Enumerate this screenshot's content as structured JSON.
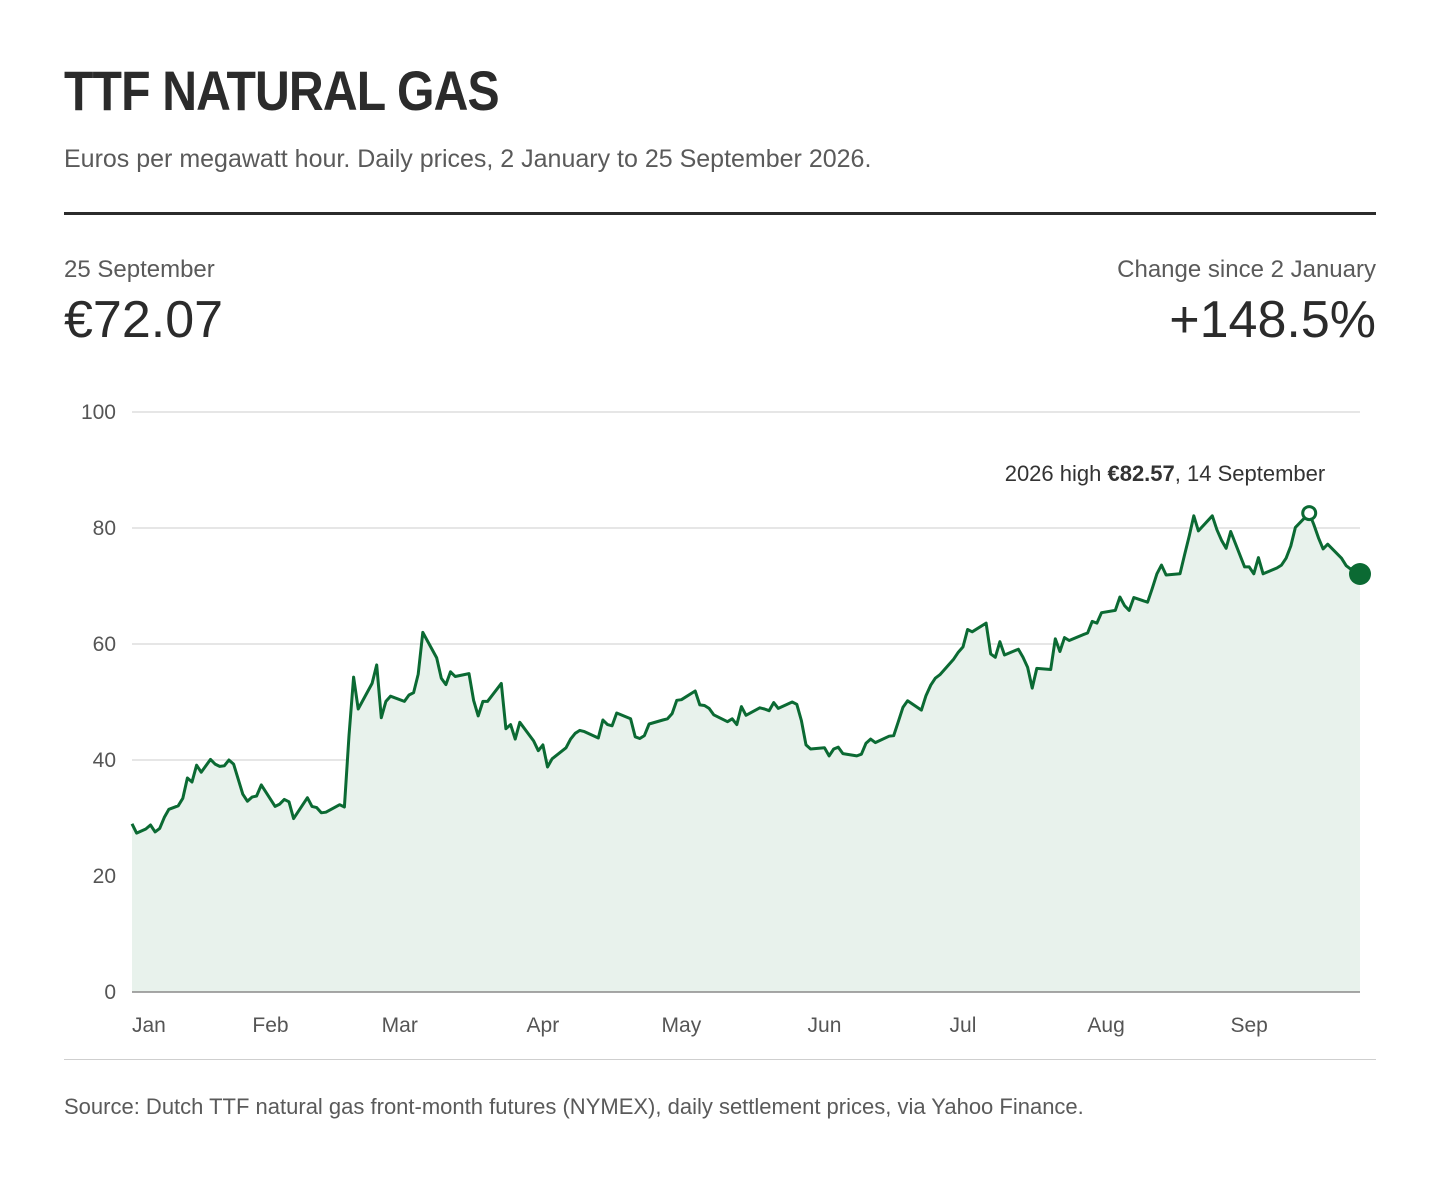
{
  "header": {
    "title": "TTF NATURAL GAS",
    "subtitle": "Euros per megawatt hour. Daily prices, 2 January to 25 September 2026."
  },
  "stats": {
    "latest_label": "25 September",
    "latest_value": "€72.07",
    "change_label": "Change since 2 January",
    "change_value": "+148.5%"
  },
  "annotation": {
    "prefix": "2026 high ",
    "value": "€82.57",
    "suffix": ", 14 September"
  },
  "source": "Source: Dutch TTF natural gas front-month futures (NYMEX), daily settlement prices, via Yahoo Finance.",
  "colors": {
    "line": "#0b6a33",
    "area": "#e8f2ec",
    "grid": "#d6d6d6",
    "axis": "#8a8a8a"
  },
  "chart_data": {
    "type": "area",
    "title": "TTF NATURAL GAS",
    "ylim": [
      0,
      100
    ],
    "yticks": [
      0,
      20,
      40,
      60,
      80,
      100
    ],
    "xlim": [
      "2026-01-02",
      "2026-09-25"
    ],
    "xticks": [
      {
        "date": "2026-01-02",
        "label": "Jan"
      },
      {
        "date": "2026-02-01",
        "label": "Feb"
      },
      {
        "date": "2026-03-01",
        "label": "Mar"
      },
      {
        "date": "2026-04-01",
        "label": "Apr"
      },
      {
        "date": "2026-05-01",
        "label": "May"
      },
      {
        "date": "2026-06-01",
        "label": "Jun"
      },
      {
        "date": "2026-07-01",
        "label": "Jul"
      },
      {
        "date": "2026-08-01",
        "label": "Aug"
      },
      {
        "date": "2026-09-01",
        "label": "Sep"
      }
    ],
    "grid": true,
    "highlight": {
      "date": "2026-09-14",
      "value": 82.57
    },
    "last": {
      "date": "2026-09-25",
      "value": 72.07
    },
    "series": [
      {
        "points": [
          [
            "2026-01-02",
            29.0
          ],
          [
            "2026-01-03",
            27.4
          ],
          [
            "2026-01-05",
            28.1
          ],
          [
            "2026-01-06",
            28.8
          ],
          [
            "2026-01-07",
            27.6
          ],
          [
            "2026-01-08",
            28.2
          ],
          [
            "2026-01-09",
            30.1
          ],
          [
            "2026-01-10",
            31.5
          ],
          [
            "2026-01-12",
            32.1
          ],
          [
            "2026-01-13",
            33.4
          ],
          [
            "2026-01-14",
            36.9
          ],
          [
            "2026-01-15",
            36.2
          ],
          [
            "2026-01-16",
            39.1
          ],
          [
            "2026-01-17",
            37.9
          ],
          [
            "2026-01-19",
            40.1
          ],
          [
            "2026-01-20",
            39.3
          ],
          [
            "2026-01-21",
            38.9
          ],
          [
            "2026-01-22",
            39.0
          ],
          [
            "2026-01-23",
            40.0
          ],
          [
            "2026-01-24",
            39.3
          ],
          [
            "2026-01-26",
            34.1
          ],
          [
            "2026-01-27",
            32.9
          ],
          [
            "2026-01-28",
            33.6
          ],
          [
            "2026-01-29",
            33.8
          ],
          [
            "2026-01-30",
            35.7
          ],
          [
            "2026-02-02",
            32.0
          ],
          [
            "2026-02-03",
            32.4
          ],
          [
            "2026-02-04",
            33.2
          ],
          [
            "2026-02-05",
            32.8
          ],
          [
            "2026-02-06",
            29.9
          ],
          [
            "2026-02-09",
            33.5
          ],
          [
            "2026-02-10",
            32.0
          ],
          [
            "2026-02-11",
            31.8
          ],
          [
            "2026-02-12",
            30.9
          ],
          [
            "2026-02-13",
            31.0
          ],
          [
            "2026-02-16",
            32.3
          ],
          [
            "2026-02-17",
            31.9
          ],
          [
            "2026-02-18",
            44.2
          ],
          [
            "2026-02-19",
            54.3
          ],
          [
            "2026-02-20",
            48.8
          ],
          [
            "2026-02-23",
            53.2
          ],
          [
            "2026-02-24",
            56.4
          ],
          [
            "2026-02-25",
            47.3
          ],
          [
            "2026-02-26",
            50.1
          ],
          [
            "2026-02-27",
            51.0
          ],
          [
            "2026-03-02",
            50.1
          ],
          [
            "2026-03-03",
            51.2
          ],
          [
            "2026-03-04",
            51.6
          ],
          [
            "2026-03-05",
            54.8
          ],
          [
            "2026-03-06",
            62.0
          ],
          [
            "2026-03-09",
            57.6
          ],
          [
            "2026-03-10",
            54.1
          ],
          [
            "2026-03-11",
            53.0
          ],
          [
            "2026-03-12",
            55.2
          ],
          [
            "2026-03-13",
            54.4
          ],
          [
            "2026-03-16",
            54.9
          ],
          [
            "2026-03-17",
            50.3
          ],
          [
            "2026-03-18",
            47.6
          ],
          [
            "2026-03-19",
            50.1
          ],
          [
            "2026-03-20",
            50.1
          ],
          [
            "2026-03-23",
            53.2
          ],
          [
            "2026-03-24",
            45.4
          ],
          [
            "2026-03-25",
            46.1
          ],
          [
            "2026-03-26",
            43.6
          ],
          [
            "2026-03-27",
            46.5
          ],
          [
            "2026-03-30",
            43.3
          ],
          [
            "2026-03-31",
            41.6
          ],
          [
            "2026-04-01",
            42.6
          ],
          [
            "2026-04-02",
            38.8
          ],
          [
            "2026-04-03",
            40.2
          ],
          [
            "2026-04-06",
            42.1
          ],
          [
            "2026-04-07",
            43.6
          ],
          [
            "2026-04-08",
            44.6
          ],
          [
            "2026-04-09",
            45.1
          ],
          [
            "2026-04-10",
            44.9
          ],
          [
            "2026-04-13",
            43.8
          ],
          [
            "2026-04-14",
            46.9
          ],
          [
            "2026-04-15",
            46.1
          ],
          [
            "2026-04-16",
            45.9
          ],
          [
            "2026-04-17",
            48.1
          ],
          [
            "2026-04-20",
            47.1
          ],
          [
            "2026-04-21",
            44.0
          ],
          [
            "2026-04-22",
            43.7
          ],
          [
            "2026-04-23",
            44.2
          ],
          [
            "2026-04-24",
            46.2
          ],
          [
            "2026-04-27",
            46.9
          ],
          [
            "2026-04-28",
            47.1
          ],
          [
            "2026-04-29",
            48.0
          ],
          [
            "2026-04-30",
            50.3
          ],
          [
            "2026-05-01",
            50.4
          ],
          [
            "2026-05-04",
            51.9
          ],
          [
            "2026-05-05",
            49.5
          ],
          [
            "2026-05-06",
            49.4
          ],
          [
            "2026-05-07",
            48.9
          ],
          [
            "2026-05-08",
            47.8
          ],
          [
            "2026-05-11",
            46.6
          ],
          [
            "2026-05-12",
            47.1
          ],
          [
            "2026-05-13",
            46.1
          ],
          [
            "2026-05-14",
            49.2
          ],
          [
            "2026-05-15",
            47.7
          ],
          [
            "2026-05-18",
            49.0
          ],
          [
            "2026-05-19",
            48.8
          ],
          [
            "2026-05-20",
            48.5
          ],
          [
            "2026-05-21",
            49.9
          ],
          [
            "2026-05-22",
            48.9
          ],
          [
            "2026-05-25",
            50.0
          ],
          [
            "2026-05-26",
            49.6
          ],
          [
            "2026-05-27",
            46.8
          ],
          [
            "2026-05-28",
            42.6
          ],
          [
            "2026-05-29",
            41.9
          ],
          [
            "2026-06-01",
            42.1
          ],
          [
            "2026-06-02",
            40.7
          ],
          [
            "2026-06-03",
            41.9
          ],
          [
            "2026-06-04",
            42.2
          ],
          [
            "2026-06-05",
            41.1
          ],
          [
            "2026-06-08",
            40.7
          ],
          [
            "2026-06-09",
            41.0
          ],
          [
            "2026-06-10",
            42.9
          ],
          [
            "2026-06-11",
            43.6
          ],
          [
            "2026-06-12",
            43.0
          ],
          [
            "2026-06-15",
            44.1
          ],
          [
            "2026-06-16",
            44.2
          ],
          [
            "2026-06-17",
            46.6
          ],
          [
            "2026-06-18",
            49.1
          ],
          [
            "2026-06-19",
            50.2
          ],
          [
            "2026-06-22",
            48.6
          ],
          [
            "2026-06-23",
            51.1
          ],
          [
            "2026-06-24",
            52.9
          ],
          [
            "2026-06-25",
            54.1
          ],
          [
            "2026-06-26",
            54.7
          ],
          [
            "2026-06-29",
            57.4
          ],
          [
            "2026-06-30",
            58.6
          ],
          [
            "2026-07-01",
            59.5
          ],
          [
            "2026-07-02",
            62.5
          ],
          [
            "2026-07-03",
            62.1
          ],
          [
            "2026-07-06",
            63.6
          ],
          [
            "2026-07-07",
            58.3
          ],
          [
            "2026-07-08",
            57.7
          ],
          [
            "2026-07-09",
            60.4
          ],
          [
            "2026-07-10",
            58.1
          ],
          [
            "2026-07-13",
            59.1
          ],
          [
            "2026-07-14",
            57.7
          ],
          [
            "2026-07-15",
            56.0
          ],
          [
            "2026-07-16",
            52.4
          ],
          [
            "2026-07-17",
            55.8
          ],
          [
            "2026-07-20",
            55.6
          ],
          [
            "2026-07-21",
            60.9
          ],
          [
            "2026-07-22",
            58.7
          ],
          [
            "2026-07-23",
            61.1
          ],
          [
            "2026-07-24",
            60.6
          ],
          [
            "2026-07-27",
            61.6
          ],
          [
            "2026-07-28",
            61.9
          ],
          [
            "2026-07-29",
            63.9
          ],
          [
            "2026-07-30",
            63.6
          ],
          [
            "2026-07-31",
            65.4
          ],
          [
            "2026-08-03",
            65.8
          ],
          [
            "2026-08-04",
            68.1
          ],
          [
            "2026-08-05",
            66.6
          ],
          [
            "2026-08-06",
            65.8
          ],
          [
            "2026-08-07",
            68.0
          ],
          [
            "2026-08-10",
            67.2
          ],
          [
            "2026-08-11",
            69.6
          ],
          [
            "2026-08-12",
            72.1
          ],
          [
            "2026-08-13",
            73.6
          ],
          [
            "2026-08-14",
            71.9
          ],
          [
            "2026-08-17",
            72.1
          ],
          [
            "2026-08-18",
            75.4
          ],
          [
            "2026-08-19",
            78.6
          ],
          [
            "2026-08-20",
            82.1
          ],
          [
            "2026-08-21",
            79.5
          ],
          [
            "2026-08-24",
            82.1
          ],
          [
            "2026-08-25",
            79.7
          ],
          [
            "2026-08-26",
            77.9
          ],
          [
            "2026-08-27",
            76.5
          ],
          [
            "2026-08-28",
            79.4
          ],
          [
            "2026-08-31",
            73.3
          ],
          [
            "2026-09-01",
            73.3
          ],
          [
            "2026-09-02",
            72.1
          ],
          [
            "2026-09-03",
            74.9
          ],
          [
            "2026-09-04",
            72.1
          ],
          [
            "2026-09-07",
            73.1
          ],
          [
            "2026-09-08",
            73.6
          ],
          [
            "2026-09-09",
            74.8
          ],
          [
            "2026-09-10",
            76.9
          ],
          [
            "2026-09-11",
            80.1
          ],
          [
            "2026-09-14",
            82.57
          ],
          [
            "2026-09-15",
            80.6
          ],
          [
            "2026-09-16",
            78.3
          ],
          [
            "2026-09-17",
            76.4
          ],
          [
            "2026-09-18",
            77.2
          ],
          [
            "2026-09-21",
            74.8
          ],
          [
            "2026-09-22",
            73.5
          ],
          [
            "2026-09-23",
            72.9
          ],
          [
            "2026-09-24",
            73.4
          ],
          [
            "2026-09-25",
            72.07
          ]
        ]
      }
    ]
  }
}
